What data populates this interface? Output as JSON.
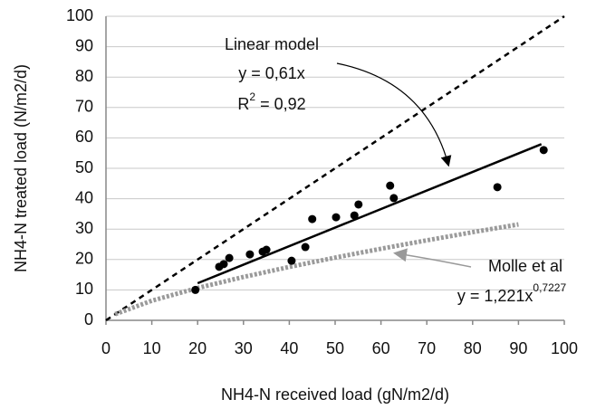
{
  "chart_data": {
    "type": "scatter",
    "x_label": "NH4-N received load (gN/m2/d)",
    "y_label": "NH4-N treated load (N/m2/d)",
    "xlim": [
      0,
      100
    ],
    "xticks": [
      0,
      10,
      20,
      30,
      40,
      50,
      60,
      70,
      80,
      90,
      100
    ],
    "ylim": [
      0,
      100
    ],
    "yticks": [
      0,
      10,
      20,
      30,
      40,
      50,
      60,
      70,
      80,
      90,
      100
    ],
    "grid": true,
    "points": {
      "color": "#000000",
      "x": [
        19.5,
        24.7,
        25.7,
        26.9,
        31.4,
        34.2,
        35,
        40.5,
        43.5,
        45,
        50.2,
        54.2,
        55.1,
        62,
        62.8,
        85.4,
        95.5
      ],
      "values": [
        10,
        17.6,
        18.5,
        20.5,
        21.7,
        22.6,
        23.2,
        19.6,
        24.1,
        33.3,
        33.9,
        34.5,
        38.1,
        44.3,
        40.2,
        43.8,
        56
      ]
    },
    "lines": [
      {
        "color": "#000000",
        "style": "dashed",
        "x": [
          0,
          100
        ],
        "values": [
          0,
          100
        ]
      },
      {
        "color": "#000000",
        "style": "solid",
        "x": [
          20,
          95
        ],
        "values": [
          12.2,
          57.95
        ]
      },
      {
        "color": "#9a9a9a",
        "style": "dotted",
        "x": [
          2,
          10,
          20,
          30,
          40,
          50,
          60,
          70,
          80,
          90
        ],
        "values": [
          2.02,
          6.45,
          10.64,
          14.26,
          17.56,
          20.63,
          23.54,
          26.31,
          28.99,
          31.55
        ]
      }
    ],
    "annotations": {
      "linear_label": "Linear model",
      "linear_equation": "y = 0,61x",
      "linear_r2": {
        "text": "R",
        "sup": "2",
        "tail": " = 0,92"
      },
      "molle_label": "Molle et al",
      "molle_equation": {
        "text": "y = 1,221x",
        "sup": "0,7227"
      }
    }
  }
}
